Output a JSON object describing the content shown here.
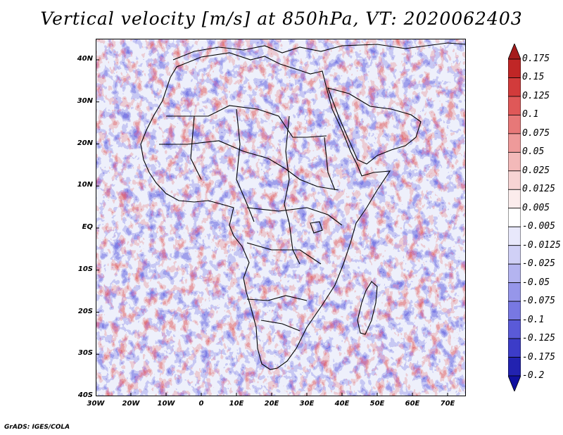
{
  "title": "Vertical velocity [m/s] at 850hPa, VT: 2020062403",
  "footer": "GrADS: IGES/COLA",
  "lat_labels": [
    "40N",
    "30N",
    "20N",
    "10N",
    "EQ",
    "10S",
    "20S",
    "30S",
    "40S"
  ],
  "lon_labels": [
    "30W",
    "20W",
    "10W",
    "0",
    "10E",
    "20E",
    "30E",
    "40E",
    "50E",
    "60E",
    "70E"
  ],
  "colorbar": {
    "labels": [
      "0.175",
      "0.15",
      "0.125",
      "0.1",
      "0.075",
      "0.05",
      "0.025",
      "0.0125",
      "0.005",
      "-0.005",
      "-0.0125",
      "-0.025",
      "-0.05",
      "-0.075",
      "-0.1",
      "-0.125",
      "-0.175",
      "-0.2"
    ],
    "colors": [
      "#a51c1c",
      "#c02626",
      "#d23b3b",
      "#df5858",
      "#e77878",
      "#ee9a9a",
      "#f3b9b9",
      "#f7d4d4",
      "#fbecec",
      "#ffffff",
      "#e8e8fb",
      "#d0d0f6",
      "#b4b4f0",
      "#9696ea",
      "#7878e2",
      "#5a5ad8",
      "#3c3cc8",
      "#2222b0",
      "#1010a0"
    ]
  },
  "colors": {
    "positive": "#e06060",
    "negative": "#6060e0",
    "borders": "#000000"
  }
}
